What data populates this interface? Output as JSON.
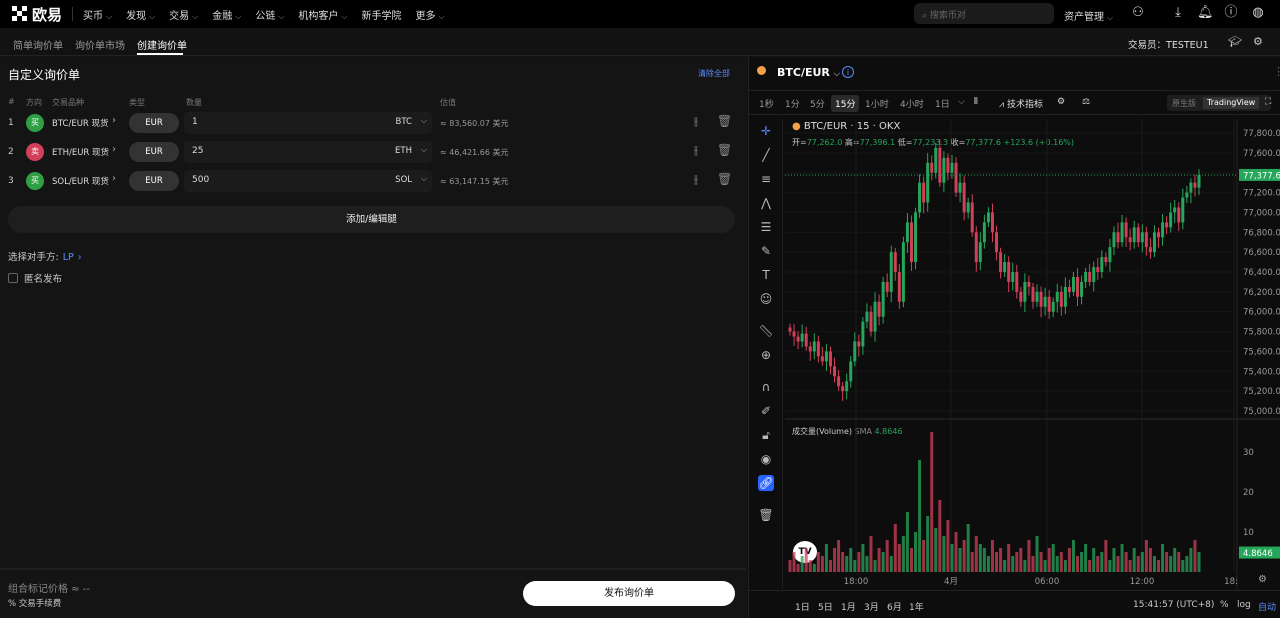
{
  "topnav": {
    "brand": "欧易",
    "items": [
      "买币",
      "发现",
      "交易",
      "金融",
      "公链",
      "机构客户",
      "新手学院",
      "更多"
    ],
    "search_placeholder": "搜索币对",
    "assets": "资产管理"
  },
  "subnav": {
    "tabs": [
      "简单询价单",
      "询价单市场",
      "创建询价单"
    ],
    "active": 2,
    "trader_label": "交易员：",
    "trader": "TESTEU1"
  },
  "form": {
    "title": "自定义询价单",
    "clear_all": "清除全部",
    "columns": [
      "#",
      "方向",
      "交易品种",
      "类型",
      "数量",
      "估值"
    ],
    "legs": [
      {
        "n": "1",
        "side": "买",
        "side_color": "#2ea043",
        "symbol": "BTC/EUR 现货",
        "type": "EUR",
        "qty": "1",
        "unit": "BTC",
        "est": "≈ 83,560.07 美元"
      },
      {
        "n": "2",
        "side": "卖",
        "side_color": "#d0405a",
        "symbol": "ETH/EUR 现货",
        "type": "EUR",
        "qty": "25",
        "unit": "ETH",
        "est": "≈ 46,421.66 美元"
      },
      {
        "n": "3",
        "side": "买",
        "side_color": "#2ea043",
        "symbol": "SOL/EUR 现货",
        "type": "EUR",
        "qty": "500",
        "unit": "SOL",
        "est": "≈ 63,147.15 美元"
      }
    ],
    "add_leg": "添加/编辑腿",
    "counterparty_label": "选择对手方:",
    "counterparty": "LP",
    "anonymous": "匿名发布",
    "mark_price": "组合标记价格 ≈ --",
    "fee": "% 交易手续费",
    "publish": "发布询价单"
  },
  "chart_panel": {
    "pair": "BTC/EUR",
    "timeframes": [
      "1秒",
      "1分",
      "5分",
      "15分",
      "1小时",
      "4小时",
      "1日"
    ],
    "active_tf": 3,
    "indicators": "技术指标",
    "mode_native": "原生版",
    "mode_tv": "TradingView",
    "legend_title": "BTC/EUR · 15 · OKX",
    "ohlc": {
      "o_label": "开=",
      "o": "77,262.0",
      "h_label": "高=",
      "h": "77,396.1",
      "l_label": "低=",
      "l": "77,233.3",
      "c_label": "收=",
      "c": "77,377.6",
      "chg": "+123.6 (+0.16%)"
    },
    "volume_label": "成交量(Volume)",
    "volume_sma": "SMA",
    "volume_value": "4.8646",
    "ranges": [
      "1日",
      "5日",
      "1月",
      "3月",
      "6月",
      "1年"
    ],
    "clock": "15:41:57 (UTC+8)",
    "pct": "%",
    "log": "log",
    "auto": "自动",
    "up_color": "#26a65b",
    "down_color": "#d0405a"
  },
  "chart_data": {
    "type": "candlestick",
    "x_ticks": [
      "18:00",
      "4月",
      "06:00",
      "12:00",
      "18:"
    ],
    "y_ticks": [
      "77,800.0",
      "77,600.0",
      "77,200.0",
      "77,000.0",
      "76,800.0",
      "76,600.0",
      "76,400.0",
      "76,200.0",
      "76,000.0",
      "75,800.0",
      "75,600.0",
      "75,400.0",
      "75,200.0",
      "75,000.0"
    ],
    "ylim": [
      75000,
      77800
    ],
    "last_price": "77,377.6",
    "vol_ticks": [
      "30",
      "20",
      "10"
    ],
    "vol_ylim": [
      0,
      35
    ],
    "closes": [
      75800,
      75750,
      75700,
      75780,
      75650,
      75600,
      75700,
      75550,
      75500,
      75600,
      75450,
      75350,
      75250,
      75200,
      75300,
      75500,
      75700,
      75650,
      75900,
      76000,
      75800,
      76100,
      75950,
      76300,
      76200,
      76600,
      76400,
      76100,
      76700,
      76900,
      76500,
      77000,
      77300,
      77100,
      77500,
      77400,
      77650,
      77300,
      77550,
      77400,
      77500,
      77200,
      77300,
      77000,
      77100,
      76800,
      76500,
      76700,
      76900,
      77000,
      76800,
      76600,
      76400,
      76500,
      76300,
      76400,
      76200,
      76100,
      76300,
      76250,
      76100,
      76200,
      76050,
      76150,
      76000,
      76100,
      76200,
      76050,
      76250,
      76200,
      76350,
      76150,
      76300,
      76400,
      76300,
      76450,
      76400,
      76550,
      76500,
      76650,
      76800,
      76700,
      76900,
      76750,
      76700,
      76850,
      76700,
      76800,
      76650,
      76600,
      76800,
      76750,
      76900,
      76850,
      77000,
      77050,
      76900,
      77150,
      77200,
      77300,
      77250,
      77378
    ],
    "volumes": [
      3,
      5,
      2,
      4,
      6,
      3,
      2,
      5,
      4,
      7,
      3,
      6,
      8,
      5,
      4,
      6,
      3,
      5,
      7,
      4,
      9,
      3,
      6,
      5,
      8,
      4,
      12,
      7,
      9,
      15,
      6,
      10,
      28,
      8,
      14,
      35,
      11,
      18,
      9,
      13,
      7,
      10,
      6,
      8,
      12,
      5,
      9,
      7,
      6,
      4,
      8,
      5,
      6,
      3,
      7,
      4,
      5,
      6,
      3,
      8,
      4,
      9,
      5,
      3,
      6,
      7,
      4,
      5,
      3,
      6,
      8,
      4,
      5,
      7,
      3,
      6,
      4,
      5,
      8,
      3,
      6,
      4,
      7,
      5,
      3,
      6,
      4,
      5,
      8,
      6,
      4,
      3,
      7,
      5,
      4,
      6,
      5,
      3,
      4,
      6,
      8,
      5
    ]
  }
}
